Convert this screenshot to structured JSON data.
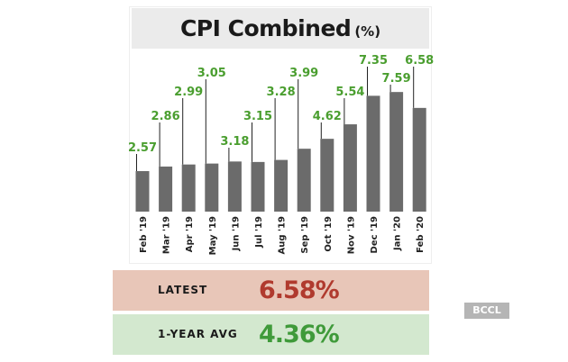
{
  "chart_data": {
    "type": "bar",
    "title": "CPI Combined",
    "title_unit": "(%)",
    "categories": [
      "Feb '19",
      "Mar '19",
      "Apr '19",
      "May '19",
      "Jun '19",
      "Jul '19",
      "Aug '19",
      "Sep '19",
      "Oct '19",
      "Nov '19",
      "Dec '19",
      "Jan '20",
      "Feb '20"
    ],
    "values": [
      2.57,
      2.86,
      2.99,
      3.05,
      3.18,
      3.15,
      3.28,
      3.99,
      4.62,
      5.54,
      7.35,
      7.59,
      6.58
    ],
    "bar_color": "#6b6b6b",
    "label_color": "#4a9e2f",
    "grid": false
  },
  "summary": {
    "latest_label": "LATEST",
    "latest_value": "6.58%",
    "latest_bg": "#e8c6b8",
    "latest_color": "#b03a2e",
    "avg_label": "1-YEAR AVG",
    "avg_value": "4.36%",
    "avg_bg": "#d3e8cf",
    "avg_color": "#3f9a3a"
  },
  "watermark": "BCCL"
}
